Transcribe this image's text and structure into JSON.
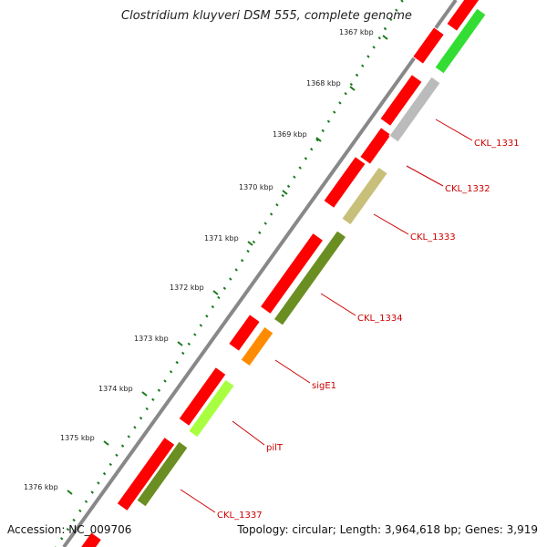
{
  "title": "Clostridium kluyveri DSM 555, complete genome",
  "accession": "Accession: NC_009706",
  "summary": "Topology: circular; Length: 3,964,618 bp; Genes: 3,919",
  "ticks": [
    "1367 kbp",
    "1368 kbp",
    "1369 kbp",
    "1370 kbp",
    "1371 kbp",
    "1372 kbp",
    "1373 kbp",
    "1374 kbp",
    "1375 kbp",
    "1376 kbp"
  ],
  "genes": [
    "CKL_1331",
    "CKL_1332",
    "CKL_1333",
    "CKL_1334",
    "sigE1",
    "pilT",
    "CKL_1337"
  ],
  "colors": {
    "cds": "#ff0000",
    "tick": "#1a7a1a",
    "backbone": "#888888",
    "label": "#cc0000",
    "gene_fill": [
      "#33dd33",
      "#bbbbbb",
      "#c8c07a",
      "#6b8e23",
      "#ff8c00",
      "#a8ff40",
      "#6b8e23"
    ]
  }
}
